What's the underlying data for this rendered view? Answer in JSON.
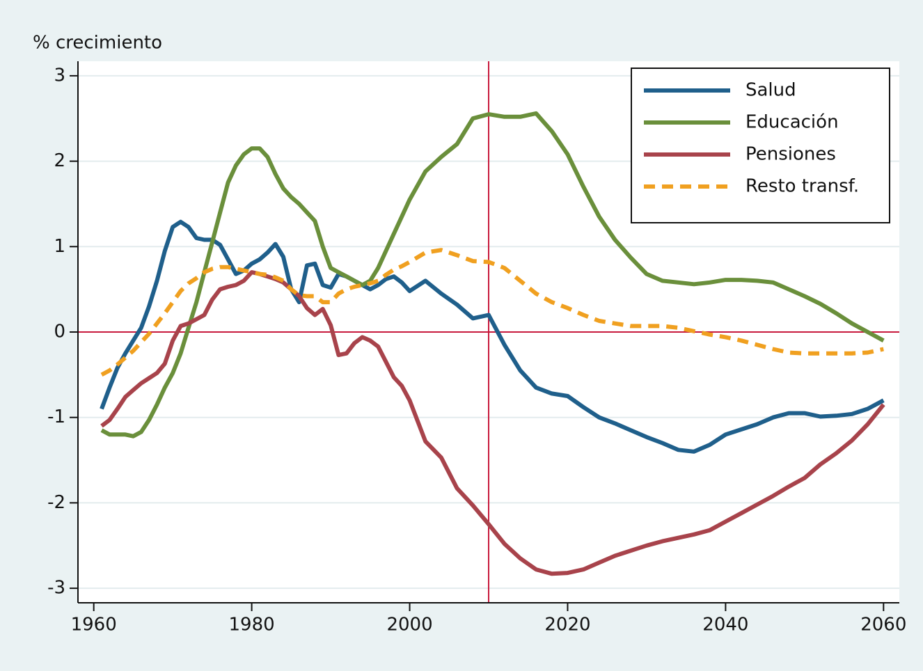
{
  "chart_data": {
    "type": "line",
    "y_label": "% crecimiento",
    "x": [
      1961,
      1962,
      1963,
      1964,
      1965,
      1966,
      1967,
      1968,
      1969,
      1970,
      1971,
      1972,
      1973,
      1974,
      1975,
      1976,
      1977,
      1978,
      1979,
      1980,
      1981,
      1982,
      1983,
      1984,
      1985,
      1986,
      1987,
      1988,
      1989,
      1990,
      1991,
      1992,
      1993,
      1994,
      1995,
      1996,
      1997,
      1998,
      1999,
      2000,
      2002,
      2004,
      2006,
      2008,
      2010,
      2012,
      2014,
      2016,
      2018,
      2020,
      2022,
      2024,
      2026,
      2028,
      2030,
      2032,
      2034,
      2036,
      2038,
      2040,
      2042,
      2044,
      2046,
      2048,
      2050,
      2052,
      2054,
      2056,
      2058,
      2060
    ],
    "series": [
      {
        "name": "Salud",
        "color": "#1f5f8b",
        "dashed": false,
        "values": [
          -0.9,
          -0.65,
          -0.42,
          -0.25,
          -0.1,
          0.05,
          0.3,
          0.6,
          0.95,
          1.23,
          1.29,
          1.23,
          1.1,
          1.08,
          1.08,
          1.02,
          0.85,
          0.68,
          0.72,
          0.8,
          0.85,
          0.93,
          1.03,
          0.88,
          0.5,
          0.35,
          0.78,
          0.8,
          0.55,
          0.52,
          0.68,
          0.65,
          0.6,
          0.55,
          0.5,
          0.55,
          0.62,
          0.65,
          0.58,
          0.48,
          0.6,
          0.45,
          0.32,
          0.16,
          0.2,
          -0.15,
          -0.45,
          -0.65,
          -0.72,
          -0.75,
          -0.88,
          -1.0,
          -1.07,
          -1.15,
          -1.23,
          -1.3,
          -1.38,
          -1.4,
          -1.32,
          -1.2,
          -1.14,
          -1.08,
          -1.0,
          -0.95,
          -0.95,
          -0.99,
          -0.98,
          -0.96,
          -0.9,
          -0.8
        ]
      },
      {
        "name": "Educación",
        "color": "#6a8f3b",
        "dashed": false,
        "values": [
          -1.15,
          -1.2,
          -1.2,
          -1.2,
          -1.22,
          -1.17,
          -1.03,
          -0.85,
          -0.65,
          -0.48,
          -0.25,
          0.05,
          0.35,
          0.7,
          1.05,
          1.4,
          1.75,
          1.95,
          2.08,
          2.15,
          2.15,
          2.05,
          1.85,
          1.68,
          1.58,
          1.5,
          1.4,
          1.3,
          1.0,
          0.75,
          0.7,
          0.65,
          0.6,
          0.55,
          0.6,
          0.75,
          0.95,
          1.15,
          1.35,
          1.55,
          1.88,
          2.05,
          2.2,
          2.5,
          2.55,
          2.52,
          2.52,
          2.56,
          2.35,
          2.08,
          1.7,
          1.35,
          1.08,
          0.87,
          0.68,
          0.6,
          0.58,
          0.56,
          0.58,
          0.61,
          0.61,
          0.6,
          0.58,
          0.5,
          0.42,
          0.33,
          0.22,
          0.1,
          0,
          -0.1
        ]
      },
      {
        "name": "Pensiones",
        "color": "#a8434b",
        "dashed": false,
        "values": [
          -1.1,
          -1.03,
          -0.9,
          -0.76,
          -0.68,
          -0.6,
          -0.54,
          -0.48,
          -0.37,
          -0.1,
          0.07,
          0.1,
          0.15,
          0.2,
          0.38,
          0.5,
          0.53,
          0.55,
          0.6,
          0.7,
          0.68,
          0.65,
          0.62,
          0.58,
          0.5,
          0.42,
          0.28,
          0.2,
          0.27,
          0.08,
          -0.27,
          -0.25,
          -0.13,
          -0.06,
          -0.1,
          -0.17,
          -0.35,
          -0.53,
          -0.63,
          -0.8,
          -1.28,
          -1.47,
          -1.83,
          -2.03,
          -2.25,
          -2.48,
          -2.65,
          -2.78,
          -2.83,
          -2.82,
          -2.78,
          -2.7,
          -2.62,
          -2.56,
          -2.5,
          -2.45,
          -2.41,
          -2.37,
          -2.32,
          -2.22,
          -2.12,
          -2.02,
          -1.92,
          -1.81,
          -1.71,
          -1.55,
          -1.42,
          -1.27,
          -1.08,
          -0.85
        ]
      },
      {
        "name": "Resto transf.",
        "color": "#f0a020",
        "dashed": true,
        "values": [
          -0.5,
          -0.45,
          -0.38,
          -0.3,
          -0.22,
          -0.12,
          -0.02,
          0.1,
          0.22,
          0.35,
          0.48,
          0.57,
          0.63,
          0.7,
          0.74,
          0.76,
          0.76,
          0.74,
          0.72,
          0.7,
          0.68,
          0.67,
          0.64,
          0.6,
          0.5,
          0.43,
          0.42,
          0.42,
          0.35,
          0.35,
          0.45,
          0.5,
          0.53,
          0.55,
          0.57,
          0.6,
          0.67,
          0.73,
          0.77,
          0.82,
          0.93,
          0.96,
          0.9,
          0.83,
          0.82,
          0.75,
          0.6,
          0.45,
          0.35,
          0.28,
          0.2,
          0.13,
          0.1,
          0.07,
          0.07,
          0.07,
          0.05,
          0.01,
          -0.03,
          -0.06,
          -0.1,
          -0.15,
          -0.2,
          -0.24,
          -0.25,
          -0.25,
          -0.25,
          -0.25,
          -0.24,
          -0.2
        ]
      }
    ],
    "xlim": [
      1958,
      2062
    ],
    "xticks": [
      1960,
      1980,
      2000,
      2020,
      2040,
      2060
    ],
    "ylim": [
      -3.17,
      3.17
    ],
    "yticks": [
      -3,
      -2,
      -1,
      0,
      1,
      2,
      3
    ],
    "grid": true,
    "vline": 2010,
    "hline": 0,
    "reference_color": "#c8193c",
    "legend_position": "upper right"
  }
}
